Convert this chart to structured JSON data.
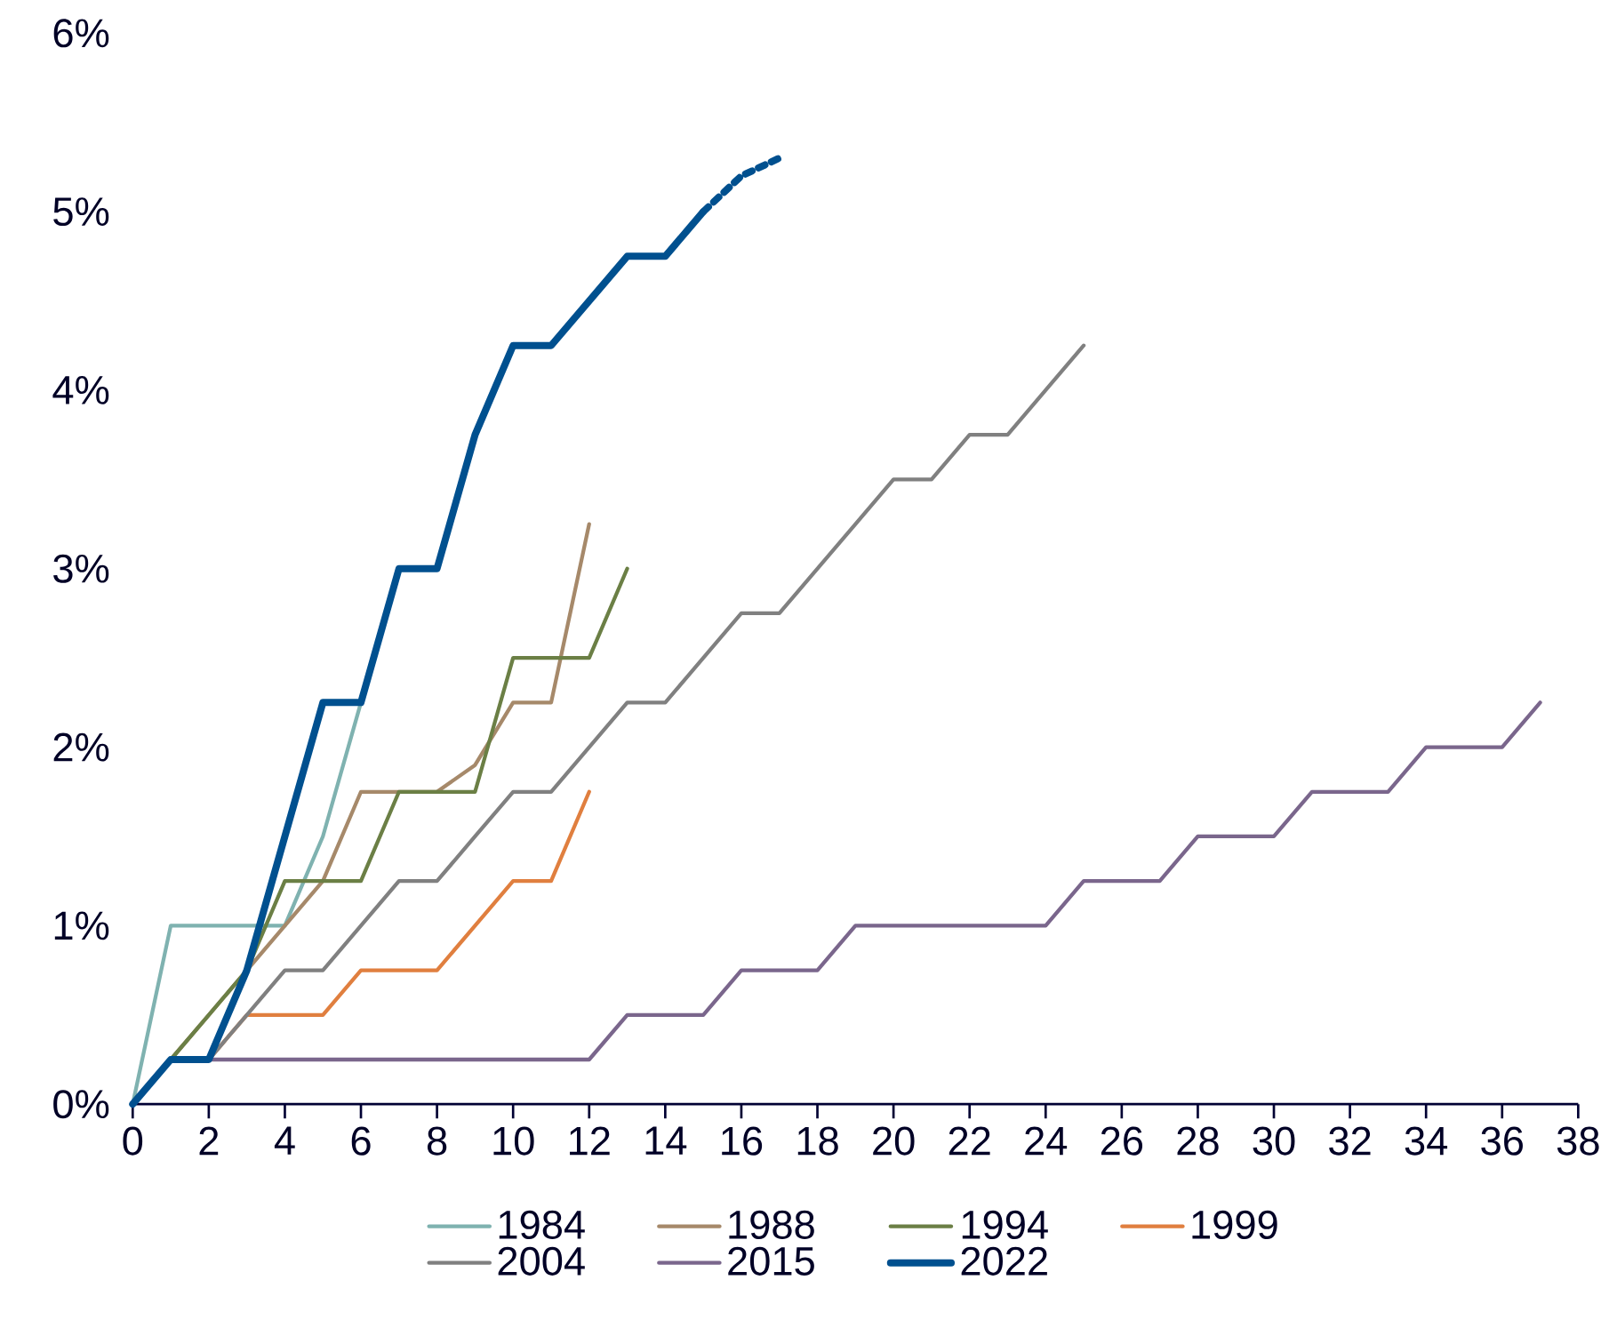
{
  "chart_data": {
    "type": "line",
    "xlim": [
      0,
      38
    ],
    "xticks": [
      0,
      2,
      4,
      6,
      8,
      10,
      12,
      14,
      16,
      18,
      20,
      22,
      24,
      26,
      28,
      30,
      32,
      34,
      36,
      38
    ],
    "ylim": [
      0,
      6
    ],
    "yticks": [
      {
        "value": 0,
        "label": "0%"
      },
      {
        "value": 1,
        "label": "1%"
      },
      {
        "value": 2,
        "label": "2%"
      },
      {
        "value": 3,
        "label": "3%"
      },
      {
        "value": 4,
        "label": "4%"
      },
      {
        "value": 5,
        "label": "5%"
      },
      {
        "value": 6,
        "label": "6%"
      }
    ],
    "legend": "bottom",
    "marker": "none",
    "line_style": "solid",
    "series": [
      {
        "name": "1984",
        "color": "#7fb2b0",
        "x": [
          0,
          1,
          2,
          3,
          4,
          5,
          6
        ],
        "values": [
          0,
          1,
          1,
          1,
          1,
          1.5,
          2.25
        ]
      },
      {
        "name": "1988",
        "color": "#a6896a",
        "x": [
          0,
          1,
          2,
          3,
          4,
          5,
          6,
          7,
          8,
          9,
          10,
          11,
          12
        ],
        "values": [
          0,
          0.25,
          0.5,
          0.75,
          1,
          1.25,
          1.75,
          1.75,
          1.75,
          1.9,
          2.25,
          2.25,
          3.25
        ]
      },
      {
        "name": "1994",
        "color": "#6b7f45",
        "x": [
          0,
          1,
          2,
          3,
          4,
          5,
          6,
          7,
          8,
          9,
          10,
          11,
          12,
          13
        ],
        "values": [
          0,
          0.25,
          0.5,
          0.75,
          1.25,
          1.25,
          1.25,
          1.75,
          1.75,
          1.75,
          2.5,
          2.5,
          2.5,
          3
        ]
      },
      {
        "name": "1999",
        "color": "#e07f3f",
        "x": [
          2,
          3,
          4,
          5,
          6,
          7,
          8,
          9,
          10,
          11,
          12
        ],
        "values": [
          0.25,
          0.5,
          0.5,
          0.5,
          0.75,
          0.75,
          0.75,
          1,
          1.25,
          1.25,
          1.75
        ]
      },
      {
        "name": "2004",
        "color": "#808080",
        "x": [
          0,
          1,
          2,
          3,
          4,
          5,
          6,
          7,
          8,
          9,
          10,
          11,
          12,
          13,
          14,
          15,
          16,
          17,
          18,
          19,
          20,
          21,
          22,
          23,
          24,
          25
        ],
        "values": [
          0,
          0.25,
          0.25,
          0.5,
          0.75,
          0.75,
          1,
          1.25,
          1.25,
          1.5,
          1.75,
          1.75,
          2,
          2.25,
          2.25,
          2.5,
          2.75,
          2.75,
          3,
          3.25,
          3.5,
          3.5,
          3.75,
          3.75,
          4,
          4.25
        ]
      },
      {
        "name": "2015",
        "color": "#7a668c",
        "x": [
          0,
          1,
          2,
          3,
          4,
          5,
          6,
          7,
          8,
          9,
          10,
          11,
          12,
          13,
          14,
          15,
          16,
          17,
          18,
          19,
          20,
          21,
          22,
          23,
          24,
          25,
          26,
          27,
          28,
          29,
          30,
          31,
          32,
          33,
          34,
          35,
          36,
          37
        ],
        "values": [
          0,
          0.25,
          0.25,
          0.25,
          0.25,
          0.25,
          0.25,
          0.25,
          0.25,
          0.25,
          0.25,
          0.25,
          0.25,
          0.5,
          0.5,
          0.5,
          0.75,
          0.75,
          0.75,
          1,
          1,
          1,
          1,
          1,
          1,
          1.25,
          1.25,
          1.25,
          1.5,
          1.5,
          1.5,
          1.75,
          1.75,
          1.75,
          2,
          2,
          2,
          2.25
        ]
      },
      {
        "name": "2022",
        "color": "#00508f",
        "x": [
          0,
          1,
          2,
          3,
          4,
          5,
          6,
          7,
          8,
          9,
          10,
          11,
          12,
          13,
          14,
          15
        ],
        "values": [
          0,
          0.25,
          0.25,
          0.75,
          1.5,
          2.25,
          2.25,
          3,
          3,
          3.75,
          4.25,
          4.25,
          4.5,
          4.75,
          4.75,
          5
        ]
      },
      {
        "color": "#00508f",
        "line_style": "dashed",
        "x": [
          15,
          16,
          17
        ],
        "values": [
          5,
          5.2,
          5.3
        ]
      }
    ]
  }
}
